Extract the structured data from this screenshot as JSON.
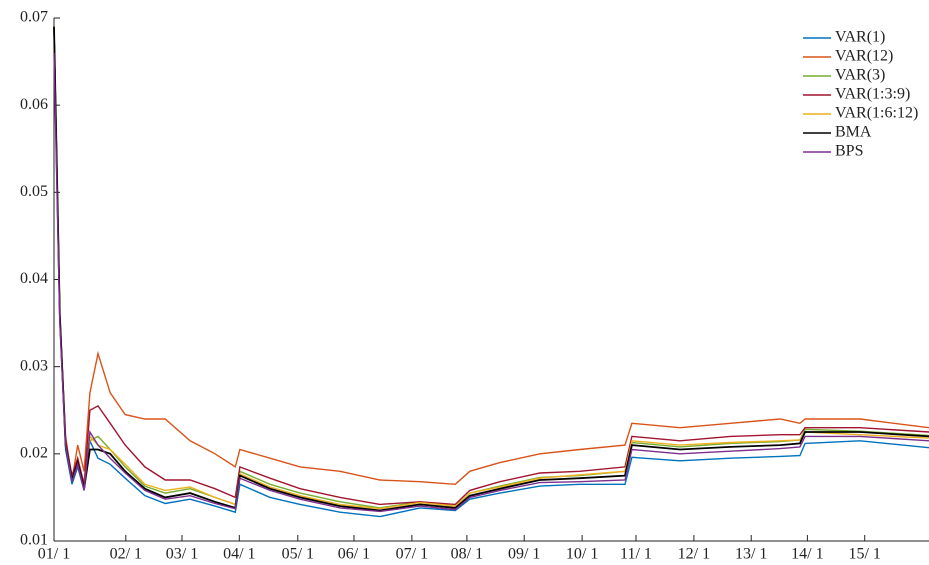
{
  "chart_data": {
    "type": "line",
    "x": [
      1,
      1.1,
      1.2,
      1.31,
      1.41,
      1.52,
      1.62,
      1.76,
      1.97,
      2.23,
      2.57,
      2.92,
      3.35,
      3.78,
      4.13,
      4.21,
      4.73,
      5.25,
      5.94,
      6.63,
      7.32,
      7.93,
      8.18,
      8.7,
      9.39,
      10.08,
      10.86,
      10.98,
      11.81,
      12.68,
      13.54,
      13.88,
      13.97,
      14.92,
      16.11
    ],
    "xlim": [
      1,
      16.11
    ],
    "xticks": [
      {
        "value": 1,
        "label": "01/ 1"
      },
      {
        "value": 2.24,
        "label": "02/ 1"
      },
      {
        "value": 3.21,
        "label": "03/ 1"
      },
      {
        "value": 4.2,
        "label": "04/ 1"
      },
      {
        "value": 5.21,
        "label": "05/ 1"
      },
      {
        "value": 6.18,
        "label": "06/ 1"
      },
      {
        "value": 7.18,
        "label": "07/ 1"
      },
      {
        "value": 8.13,
        "label": "08/ 1"
      },
      {
        "value": 9.12,
        "label": "09/ 1"
      },
      {
        "value": 10.12,
        "label": "10/ 1"
      },
      {
        "value": 11.05,
        "label": "11/ 1"
      },
      {
        "value": 12.05,
        "label": "12/ 1"
      },
      {
        "value": 13.04,
        "label": "13/ 1"
      },
      {
        "value": 14.01,
        "label": "14/ 1"
      },
      {
        "value": 15,
        "label": "15/ 1"
      }
    ],
    "ylim": [
      0.01,
      0.07
    ],
    "yticks": [
      0.01,
      0.02,
      0.03,
      0.04,
      0.05,
      0.06,
      0.07
    ],
    "legend": "upper right",
    "series": [
      {
        "name": "VAR(1)",
        "color": "#0072bd",
        "values": [
          0.069,
          0.036,
          0.0205,
          0.0165,
          0.0185,
          0.0158,
          0.0215,
          0.0195,
          0.0188,
          0.0172,
          0.0152,
          0.0143,
          0.0148,
          0.014,
          0.0133,
          0.0165,
          0.015,
          0.0142,
          0.0133,
          0.0128,
          0.0138,
          0.0135,
          0.0148,
          0.0155,
          0.0163,
          0.0165,
          0.0165,
          0.0196,
          0.0192,
          0.0195,
          0.0197,
          0.0198,
          0.0212,
          0.0215,
          0.0207
        ]
      },
      {
        "name": "VAR(12)",
        "color": "#d95319",
        "values": [
          0.069,
          0.036,
          0.022,
          0.017,
          0.021,
          0.018,
          0.027,
          0.0315,
          0.027,
          0.0245,
          0.024,
          0.024,
          0.0215,
          0.02,
          0.0185,
          0.0205,
          0.0195,
          0.0185,
          0.018,
          0.017,
          0.0168,
          0.0165,
          0.018,
          0.019,
          0.02,
          0.0205,
          0.021,
          0.0235,
          0.023,
          0.0235,
          0.024,
          0.0235,
          0.024,
          0.024,
          0.023
        ]
      },
      {
        "name": "VAR(3)",
        "color": "#77ac30",
        "values": [
          0.069,
          0.036,
          0.021,
          0.0172,
          0.0193,
          0.0162,
          0.0215,
          0.022,
          0.0205,
          0.0185,
          0.0163,
          0.0155,
          0.016,
          0.015,
          0.0142,
          0.018,
          0.0165,
          0.0155,
          0.0145,
          0.0138,
          0.0145,
          0.014,
          0.0155,
          0.0163,
          0.0173,
          0.0175,
          0.018,
          0.0213,
          0.0208,
          0.0212,
          0.0214,
          0.0216,
          0.0228,
          0.0226,
          0.0221
        ]
      },
      {
        "name": "VAR(1:3:9)",
        "color": "#a2142f",
        "values": [
          0.069,
          0.036,
          0.0215,
          0.0175,
          0.0195,
          0.0165,
          0.025,
          0.0255,
          0.0235,
          0.021,
          0.0185,
          0.017,
          0.017,
          0.016,
          0.015,
          0.0185,
          0.0172,
          0.016,
          0.015,
          0.0142,
          0.0145,
          0.0142,
          0.0158,
          0.0168,
          0.0178,
          0.018,
          0.0185,
          0.022,
          0.0215,
          0.022,
          0.0222,
          0.0222,
          0.023,
          0.023,
          0.0225
        ]
      },
      {
        "name": "VAR(1:6:12)",
        "color": "#edb120",
        "values": [
          0.069,
          0.036,
          0.021,
          0.017,
          0.019,
          0.016,
          0.022,
          0.021,
          0.0205,
          0.0188,
          0.0165,
          0.0158,
          0.0162,
          0.015,
          0.0142,
          0.0177,
          0.0162,
          0.0152,
          0.0142,
          0.0137,
          0.0144,
          0.014,
          0.0155,
          0.0162,
          0.0172,
          0.0176,
          0.018,
          0.0215,
          0.021,
          0.0213,
          0.0215,
          0.0216,
          0.0225,
          0.0222,
          0.0218
        ]
      },
      {
        "name": "BMA",
        "color": "#000000",
        "values": [
          0.069,
          0.036,
          0.021,
          0.017,
          0.019,
          0.016,
          0.0205,
          0.0205,
          0.02,
          0.018,
          0.016,
          0.015,
          0.0155,
          0.0145,
          0.0138,
          0.0175,
          0.016,
          0.015,
          0.014,
          0.0135,
          0.0142,
          0.0138,
          0.0152,
          0.016,
          0.017,
          0.0172,
          0.0175,
          0.021,
          0.0205,
          0.0208,
          0.021,
          0.0212,
          0.0225,
          0.0225,
          0.022
        ]
      },
      {
        "name": "BPS",
        "color": "#7e2f8e",
        "values": [
          0.066,
          0.035,
          0.021,
          0.0168,
          0.0188,
          0.0158,
          0.0225,
          0.021,
          0.0195,
          0.0178,
          0.0158,
          0.0148,
          0.0152,
          0.0143,
          0.0137,
          0.0172,
          0.0158,
          0.0148,
          0.0138,
          0.0134,
          0.014,
          0.0136,
          0.015,
          0.0158,
          0.0167,
          0.0168,
          0.017,
          0.0205,
          0.02,
          0.0203,
          0.0206,
          0.0208,
          0.022,
          0.022,
          0.0215
        ]
      }
    ]
  }
}
